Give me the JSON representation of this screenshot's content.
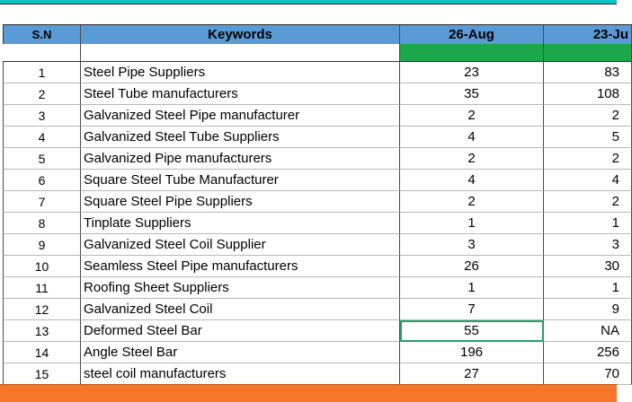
{
  "header": {
    "sn": "S.N",
    "keywords": "Keywords",
    "date1": "26-Aug",
    "date2": "23-Ju"
  },
  "rows": [
    {
      "sn": "1",
      "keyword": "Steel Pipe Suppliers",
      "d1": "23",
      "d2": "83"
    },
    {
      "sn": "2",
      "keyword": "Steel Tube manufacturers",
      "d1": "35",
      "d2": "108"
    },
    {
      "sn": "3",
      "keyword": "Galvanized Steel Pipe manufacturer",
      "d1": "2",
      "d2": "2"
    },
    {
      "sn": "4",
      "keyword": "Galvanized Steel Tube Suppliers",
      "d1": "4",
      "d2": "5"
    },
    {
      "sn": "5",
      "keyword": "Galvanized Pipe manufacturers",
      "d1": "2",
      "d2": "2"
    },
    {
      "sn": "6",
      "keyword": "Square Steel Tube Manufacturer",
      "d1": "4",
      "d2": "4"
    },
    {
      "sn": "7",
      "keyword": "Square Steel Pipe Suppliers",
      "d1": "2",
      "d2": "2"
    },
    {
      "sn": "8",
      "keyword": "Tinplate Suppliers",
      "d1": "1",
      "d2": "1"
    },
    {
      "sn": "9",
      "keyword": "Galvanized Steel Coil Supplier",
      "d1": "3",
      "d2": "3"
    },
    {
      "sn": "10",
      "keyword": "Seamless Steel Pipe manufacturers",
      "d1": "26",
      "d2": "30"
    },
    {
      "sn": "11",
      "keyword": "Roofing Sheet Suppliers",
      "d1": "1",
      "d2": "1"
    },
    {
      "sn": "12",
      "keyword": "Galvanized Steel Coil",
      "d1": "7",
      "d2": "9"
    },
    {
      "sn": "13",
      "keyword": "Deformed Steel Bar",
      "d1": "55",
      "d2": "NA"
    },
    {
      "sn": "14",
      "keyword": "Angle Steel Bar",
      "d1": "196",
      "d2": "256"
    },
    {
      "sn": "15",
      "keyword": "steel coil manufacturers",
      "d1": "27",
      "d2": "70"
    }
  ],
  "colors": {
    "header_bg": "#5b9bd5",
    "date_band": "#1aa84a",
    "top_band": "#0fc6c4",
    "bottom_band": "#f4772a",
    "selection": "#21a366"
  },
  "selected_cell": {
    "row": "13",
    "column": "26-Aug"
  }
}
